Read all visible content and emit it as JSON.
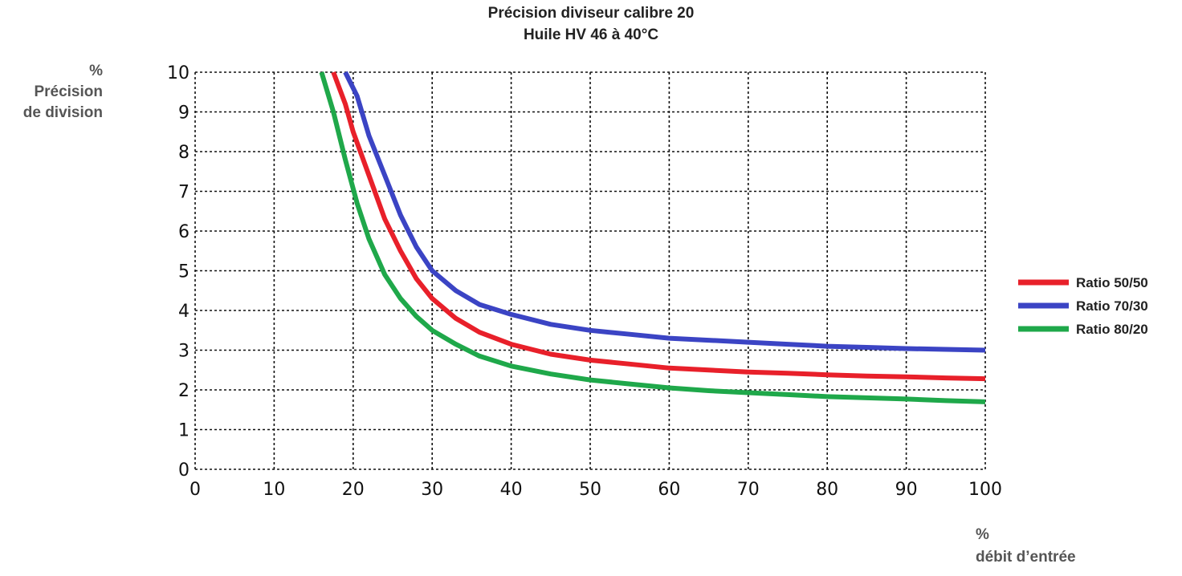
{
  "chart_data": {
    "type": "line",
    "title_lines": [
      "Précision diviseur calibre 20",
      "Huile HV 46 à 40°C"
    ],
    "ylabel_lines": [
      "%",
      "Précision",
      "de division"
    ],
    "xlabel_lines": [
      "%",
      "débit d’entrée"
    ],
    "xlim": [
      0,
      100
    ],
    "ylim": [
      0,
      10
    ],
    "x_ticks": [
      "0",
      "10",
      "20",
      "30",
      "40",
      "50",
      "60",
      "70",
      "80",
      "90",
      "100"
    ],
    "y_ticks": [
      "0",
      "1",
      "2",
      "3",
      "4",
      "5",
      "6",
      "7",
      "8",
      "9",
      "10"
    ],
    "grid": true,
    "legend_position": "right",
    "series": [
      {
        "name": "Ratio 50/50",
        "color": "#e8202a",
        "points": [
          [
            17.5,
            10
          ],
          [
            19,
            9.2
          ],
          [
            20,
            8.5
          ],
          [
            22,
            7.4
          ],
          [
            24,
            6.3
          ],
          [
            26,
            5.5
          ],
          [
            28,
            4.8
          ],
          [
            30,
            4.3
          ],
          [
            33,
            3.8
          ],
          [
            36,
            3.45
          ],
          [
            40,
            3.15
          ],
          [
            45,
            2.9
          ],
          [
            50,
            2.75
          ],
          [
            55,
            2.65
          ],
          [
            60,
            2.55
          ],
          [
            65,
            2.5
          ],
          [
            70,
            2.45
          ],
          [
            75,
            2.42
          ],
          [
            80,
            2.38
          ],
          [
            85,
            2.35
          ],
          [
            90,
            2.33
          ],
          [
            95,
            2.3
          ],
          [
            100,
            2.28
          ]
        ]
      },
      {
        "name": "Ratio 70/30",
        "color": "#3b44c4",
        "points": [
          [
            19,
            10
          ],
          [
            20.5,
            9.4
          ],
          [
            22,
            8.4
          ],
          [
            24,
            7.4
          ],
          [
            26,
            6.4
          ],
          [
            28,
            5.6
          ],
          [
            30,
            5.0
          ],
          [
            33,
            4.5
          ],
          [
            36,
            4.15
          ],
          [
            40,
            3.9
          ],
          [
            45,
            3.65
          ],
          [
            50,
            3.5
          ],
          [
            55,
            3.4
          ],
          [
            60,
            3.3
          ],
          [
            65,
            3.25
          ],
          [
            70,
            3.2
          ],
          [
            75,
            3.15
          ],
          [
            80,
            3.1
          ],
          [
            85,
            3.07
          ],
          [
            90,
            3.04
          ],
          [
            95,
            3.02
          ],
          [
            100,
            3.0
          ]
        ]
      },
      {
        "name": "Ratio 80/20",
        "color": "#1fa84a",
        "points": [
          [
            16,
            10
          ],
          [
            17.5,
            9.0
          ],
          [
            19,
            7.8
          ],
          [
            20.5,
            6.7
          ],
          [
            22,
            5.8
          ],
          [
            24,
            4.9
          ],
          [
            26,
            4.3
          ],
          [
            28,
            3.85
          ],
          [
            30,
            3.5
          ],
          [
            33,
            3.15
          ],
          [
            36,
            2.85
          ],
          [
            40,
            2.6
          ],
          [
            45,
            2.4
          ],
          [
            50,
            2.25
          ],
          [
            55,
            2.15
          ],
          [
            60,
            2.05
          ],
          [
            65,
            1.98
          ],
          [
            70,
            1.93
          ],
          [
            75,
            1.88
          ],
          [
            80,
            1.83
          ],
          [
            85,
            1.8
          ],
          [
            90,
            1.77
          ],
          [
            95,
            1.73
          ],
          [
            100,
            1.7
          ]
        ]
      }
    ]
  }
}
